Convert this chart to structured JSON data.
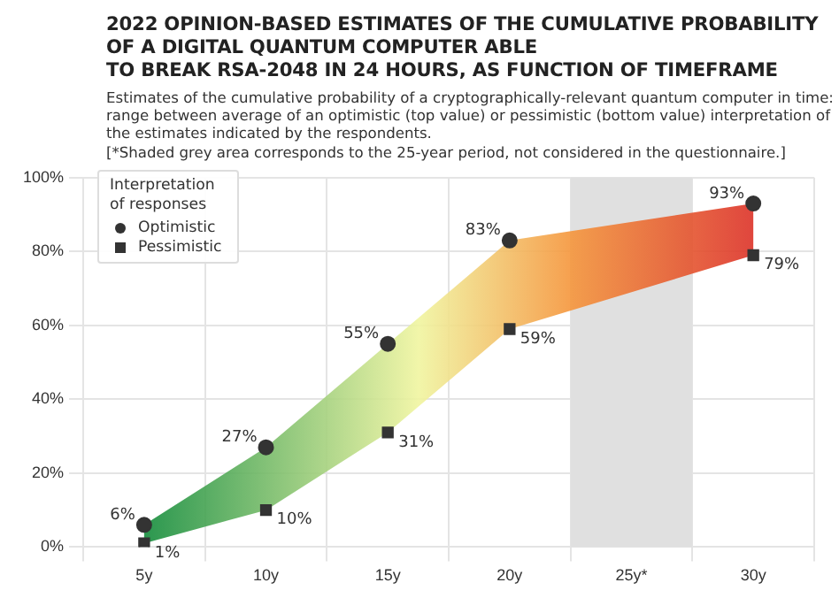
{
  "chart_data": {
    "type": "scatter",
    "title": "2022 OPINION-BASED ESTIMATES OF THE CUMULATIVE PROBABILITY OF A DIGITAL QUANTUM COMPUTER ABLE\nTO BREAK RSA-2048 IN 24 HOURS, AS FUNCTION OF TIMEFRAME",
    "subtitle": "Estimates of the cumulative probability of a cryptographically-relevant quantum computer in time: range between average of an optimistic (top value) or pessimistic (bottom value) interpretation of the estimates indicated by the respondents.\n[*Shaded grey area corresponds to the 25-year period, not considered in the questionnaire.]",
    "categories": [
      "5y",
      "10y",
      "15y",
      "20y",
      "25y*",
      "30y"
    ],
    "series": [
      {
        "name": "Optimistic",
        "color": "#333333",
        "marker": "circle",
        "values": [
          6,
          27,
          55,
          83,
          null,
          93
        ],
        "value_labels": [
          "6%",
          "27%",
          "55%",
          "83%",
          null,
          "93%"
        ],
        "upper": [
          6,
          27,
          55,
          83,
          null,
          93
        ],
        "lower": [
          1,
          10,
          31,
          59,
          null,
          79
        ]
      },
      {
        "name": "Pessimistic",
        "color": "#333333",
        "marker": "square",
        "values": [
          1,
          10,
          31,
          59,
          null,
          79
        ],
        "value_labels": [
          "1%",
          "10%",
          "31%",
          "59%",
          null,
          "79%"
        ]
      }
    ],
    "ylim": [
      0,
      100
    ],
    "yticks": [
      {
        "value": 0,
        "label": "0%"
      },
      {
        "value": 20,
        "label": "20%"
      },
      {
        "value": 40,
        "label": "40%"
      },
      {
        "value": 60,
        "label": "60%"
      },
      {
        "value": 80,
        "label": "80%"
      },
      {
        "value": 100,
        "label": "100%"
      }
    ],
    "bands": [
      {
        "axis": "x",
        "from": "25y*",
        "to": "25y*",
        "color": "#e0e0e0"
      }
    ],
    "grid": true,
    "legend": "top left",
    "legend_title": "Interpretation of responses"
  }
}
